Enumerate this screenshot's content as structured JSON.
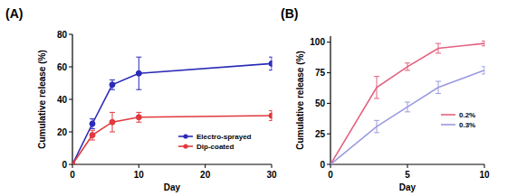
{
  "chart_data": [
    {
      "type": "line",
      "title": "(A)",
      "x_label": "Day",
      "y_label": "Cumulative release (%)",
      "x": [
        0,
        3,
        6,
        10,
        30
      ],
      "xlim": [
        0,
        30
      ],
      "xticks": [
        0,
        10,
        20,
        30
      ],
      "ylim": [
        0,
        80
      ],
      "yticks": [
        0,
        20,
        40,
        60,
        80
      ],
      "grid": false,
      "legend": "lower right",
      "series": [
        {
          "name": "Electro-sprayed",
          "color": "#2b2bb8",
          "marker": "circle",
          "line_style": "solid",
          "values": [
            0,
            25,
            49,
            56,
            62
          ],
          "errors": [
            0,
            3,
            3,
            10,
            4
          ]
        },
        {
          "name": "Dip-coated",
          "color": "#e0393e",
          "marker": "circle",
          "line_style": "solid",
          "values": [
            0,
            18,
            26,
            29,
            30
          ],
          "errors": [
            0,
            3,
            6,
            3,
            3
          ]
        }
      ]
    },
    {
      "type": "line",
      "title": "(B)",
      "x_label": "Day",
      "y_label": "Cumulative release (%)",
      "x": [
        0,
        3,
        5,
        7,
        10
      ],
      "xlim": [
        0,
        10
      ],
      "xticks": [
        0,
        5,
        10
      ],
      "ylim": [
        0,
        105
      ],
      "yticks": [
        0,
        25,
        50,
        75,
        100
      ],
      "grid": false,
      "legend": "lower right",
      "series": [
        {
          "name": "0.2%",
          "color": "#e4607f",
          "marker": "none",
          "line_style": "solid",
          "values": [
            0,
            63,
            80,
            95,
            99
          ],
          "errors": [
            0,
            9,
            3,
            4,
            2
          ]
        },
        {
          "name": "0.3%",
          "color": "#9a9ae0",
          "marker": "none",
          "line_style": "solid",
          "values": [
            0,
            31,
            47,
            63,
            77
          ],
          "errors": [
            0,
            5,
            4,
            5,
            3
          ]
        }
      ]
    }
  ]
}
